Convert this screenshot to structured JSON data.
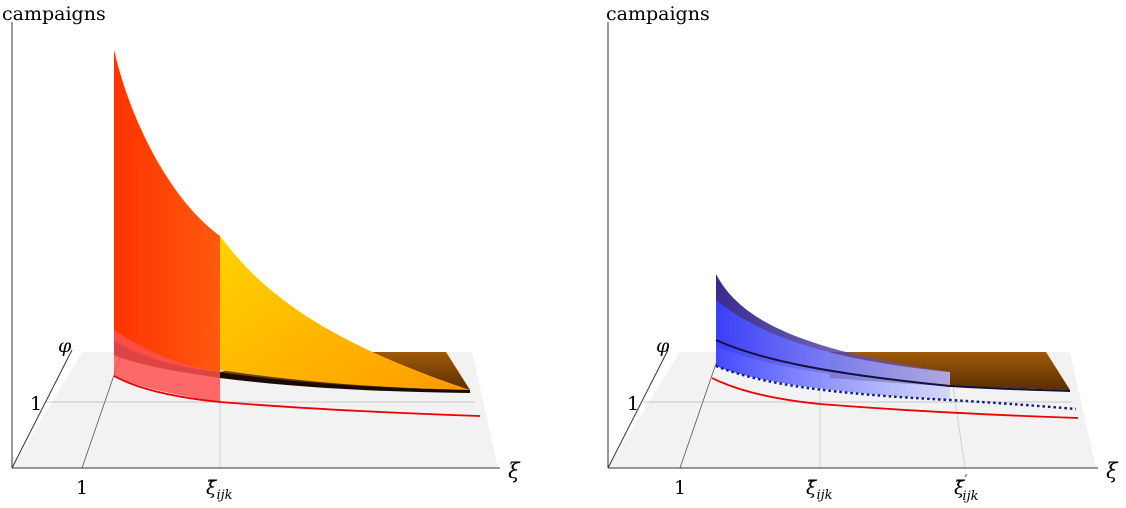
{
  "panels": [
    {
      "y_axis_label": "campaigns",
      "x_axis_label": "ξ",
      "depth_axis_label": "φ",
      "depth_tick": "1",
      "x_tick_one": "1",
      "x_tick_xi_base": "ξ̄",
      "x_tick_xi_sub": "ijk",
      "surface_colors": [
        "#ff2a00",
        "#ffd000",
        "#8b4a00"
      ]
    },
    {
      "y_axis_label": "campaigns",
      "x_axis_label": "ξ",
      "depth_axis_label": "φ",
      "depth_tick": "1",
      "x_tick_one": "1",
      "x_tick_xi_base": "ξ̄",
      "x_tick_xi_sub": "ijk",
      "x_tick_xi_prime_base": "ξ̄",
      "x_tick_xi_prime_sup": "′",
      "x_tick_xi_prime_sub": "ijk",
      "surface_colors": [
        "#3a2aa0",
        "#4a4aff",
        "#8b4a00"
      ]
    }
  ]
}
